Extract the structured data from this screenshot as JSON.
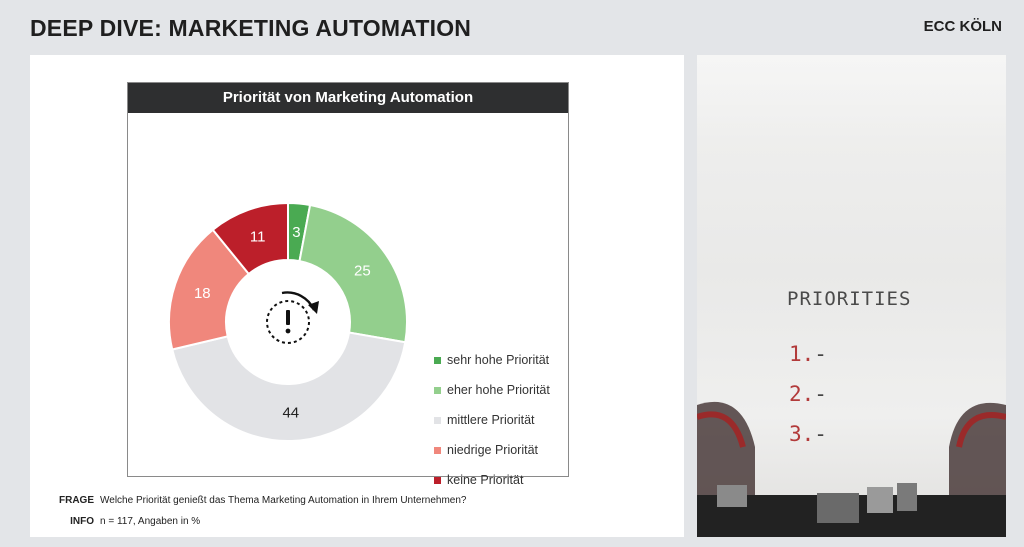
{
  "header": {
    "title": "DEEP DIVE: MARKETING AUTOMATION",
    "brand": "ECC KÖLN"
  },
  "chart_data": {
    "type": "pie",
    "title": "Priorität von Marketing Automation",
    "categories": [
      "sehr hohe Priorität",
      "eher hohe Priorität",
      "mittlere Priorität",
      "niedrige Priorität",
      "keine Priorität"
    ],
    "values": [
      3,
      25,
      44,
      18,
      11
    ],
    "colors": [
      "#4aaa52",
      "#93cf8d",
      "#e2e3e6",
      "#f0877c",
      "#bc1f2a"
    ],
    "label_colors": [
      "#ffffff",
      "#ffffff",
      "#222222",
      "#ffffff",
      "#ffffff"
    ],
    "donut": true,
    "center_icon": "clock-exclamation-icon",
    "legend": "right"
  },
  "footnotes": {
    "frage_label": "FRAGE",
    "frage_text": "Welche Priorität genießt das Thema Marketing Automation in Ihrem Unternehmen?",
    "info_label": "INFO",
    "info_text": "n = 117, Angaben in %"
  },
  "image": {
    "title": "PRIORITIES",
    "items": [
      {
        "num": "1.",
        "dash": "-"
      },
      {
        "num": "2.",
        "dash": "-"
      },
      {
        "num": "3.",
        "dash": "-"
      }
    ]
  }
}
